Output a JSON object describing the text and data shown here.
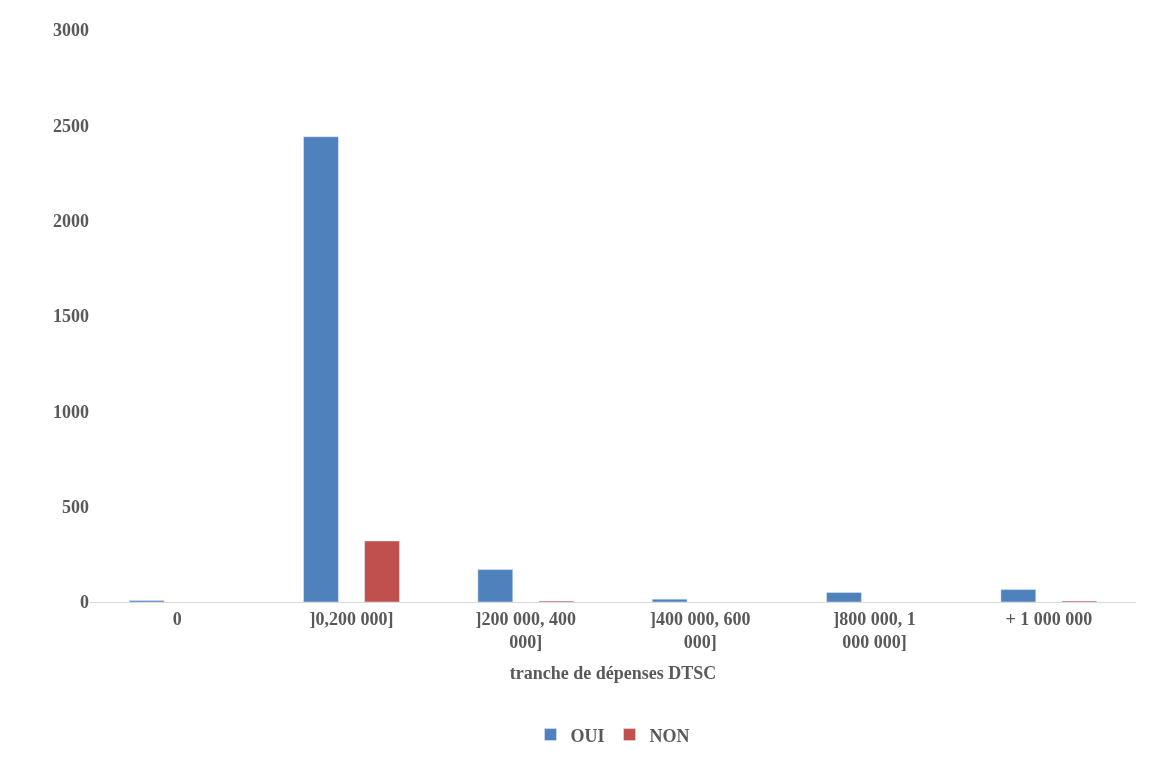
{
  "chart_data": {
    "type": "bar",
    "xlabel": "tranche de dépenses DTSC",
    "categories": [
      "0",
      "]0,200 000]",
      "]200 000, 400 000]",
      "]400 000, 600 000]",
      "]800 000, 1 000 000]",
      "+ 1 000 000"
    ],
    "series": [
      {
        "name": "OUI",
        "color": "#4f81bd",
        "values": [
          8,
          2440,
          170,
          15,
          50,
          65
        ]
      },
      {
        "name": "NON",
        "color": "#c0504d",
        "values": [
          null,
          320,
          5,
          null,
          null,
          5
        ]
      }
    ],
    "ylim": [
      0,
      3000
    ],
    "yticks": [
      0,
      500,
      1000,
      1500,
      2000,
      2500,
      3000
    ],
    "grid": false,
    "legend": "bottom"
  }
}
